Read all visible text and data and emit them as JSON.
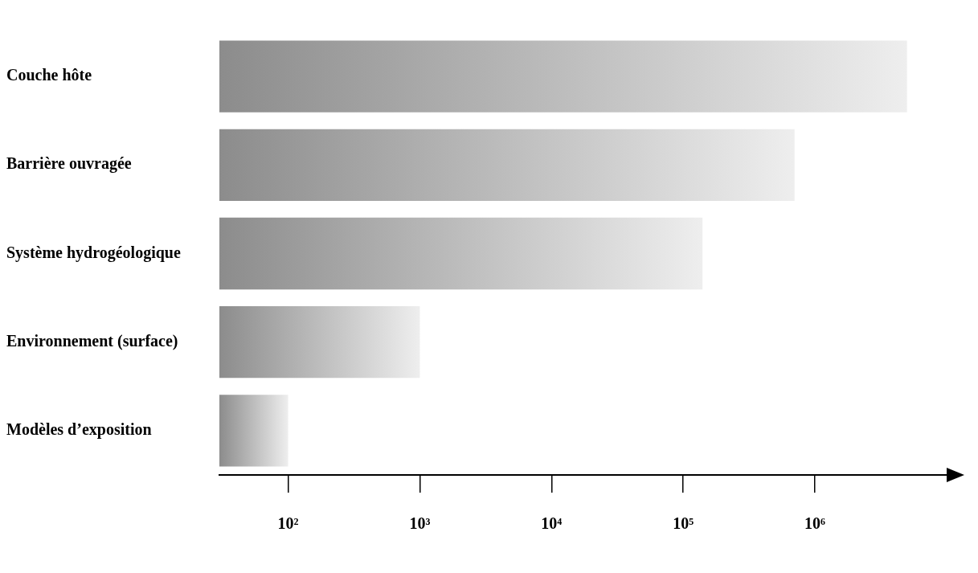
{
  "chart_data": {
    "type": "bar",
    "orientation": "horizontal",
    "categories": [
      "Couche hôte",
      "Barrière ouvragée",
      "Système hydrogéologique",
      "Environnement (surface)",
      "Modèles d’exposition"
    ],
    "values": [
      5000000,
      700000,
      140000,
      1000,
      100
    ],
    "color": "#8c8c8c",
    "log": "x",
    "xlim": [
      30,
      10000000
    ],
    "xticks": [
      {
        "value": 100,
        "label": "10²"
      },
      {
        "value": 1000,
        "label": "10³"
      },
      {
        "value": 10000,
        "label": "10⁴"
      },
      {
        "value": 100000,
        "label": "10⁵"
      },
      {
        "value": 1000000,
        "label": "10⁶"
      }
    ],
    "grid": false,
    "legend": false
  }
}
